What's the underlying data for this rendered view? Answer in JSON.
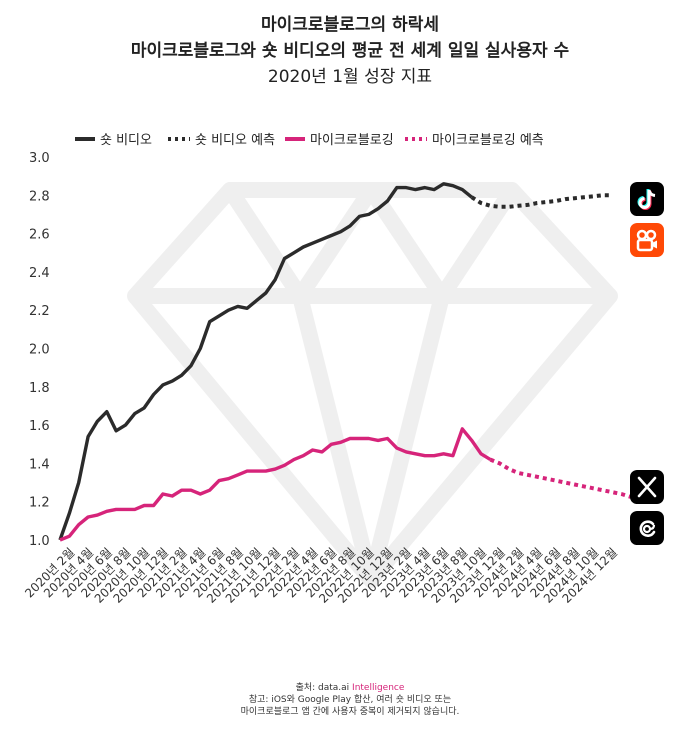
{
  "title": {
    "line1": "마이크로블로그의 하락세",
    "line2": "마이크로블로그와 숏 비디오의 평균 전 세계 일일 실사용자 수",
    "line3": "2020년 1월 성장 지표"
  },
  "footer": {
    "source_prefix": "출처: data.ai ",
    "source_brand": "Intelligence",
    "note1": "참고: iOS와 Google Play 합산, 여러 숏 비디오 또는",
    "note2": "마이크로블로그 앱 간에 사용자 중복이 제거되지 않습니다."
  },
  "icons": {
    "tiktok": "tiktok-icon",
    "kuaishou": "kuaishou-icon",
    "x": "x-app-icon",
    "threads": "threads-icon"
  },
  "colors": {
    "short_video": "#2b2b2b",
    "microblog": "#d6247a",
    "watermark": "#eeeeee"
  },
  "chart_data": {
    "type": "line",
    "title": "",
    "xlabel": "",
    "ylabel": "",
    "ylim": [
      1.0,
      3.0
    ],
    "yticks": [
      "1.0",
      "1.2",
      "1.4",
      "1.6",
      "1.8",
      "2.0",
      "2.2",
      "2.4",
      "2.6",
      "2.8",
      "3.0"
    ],
    "x_tick_labels": [
      "2020년 2월",
      "2020년 4월",
      "2020년 6월",
      "2020년 8월",
      "2020년 10월",
      "2020년 12월",
      "2021년 2월",
      "2021년 4월",
      "2021년 6월",
      "2021년 8월",
      "2021년 10월",
      "2021년 12월",
      "2022년 2월",
      "2022년 4월",
      "2022년 6월",
      "2022년 8월",
      "2022년 10월",
      "2022년 12월",
      "2023년 2월",
      "2023년 4월",
      "2023년 6월",
      "2023년 8월",
      "2023년 10월",
      "2023년 12월",
      "2024년 2월",
      "2024년 4월",
      "2024년 6월",
      "2024년 8월",
      "2024년 10월",
      "2024년 12월"
    ],
    "x_months": [
      "2020-01",
      "2020-02",
      "2020-03",
      "2020-04",
      "2020-05",
      "2020-06",
      "2020-07",
      "2020-08",
      "2020-09",
      "2020-10",
      "2020-11",
      "2020-12",
      "2021-01",
      "2021-02",
      "2021-03",
      "2021-04",
      "2021-05",
      "2021-06",
      "2021-07",
      "2021-08",
      "2021-09",
      "2021-10",
      "2021-11",
      "2021-12",
      "2022-01",
      "2022-02",
      "2022-03",
      "2022-04",
      "2022-05",
      "2022-06",
      "2022-07",
      "2022-08",
      "2022-09",
      "2022-10",
      "2022-11",
      "2022-12",
      "2023-01",
      "2023-02",
      "2023-03",
      "2023-04",
      "2023-05",
      "2023-06",
      "2023-07",
      "2023-08",
      "2023-09",
      "2023-10",
      "2023-11",
      "2023-12",
      "2024-01",
      "2024-02",
      "2024-03",
      "2024-04",
      "2024-05",
      "2024-06",
      "2024-07",
      "2024-08",
      "2024-09",
      "2024-10",
      "2024-11",
      "2024-12"
    ],
    "legend_position": "top",
    "grid": false,
    "series": [
      {
        "name": "숏 비디오",
        "style": "solid",
        "color": "#2b2b2b",
        "start": "2020-01",
        "values": [
          1.0,
          1.14,
          1.3,
          1.54,
          1.62,
          1.67,
          1.57,
          1.6,
          1.66,
          1.69,
          1.76,
          1.81,
          1.83,
          1.86,
          1.91,
          2.0,
          2.14,
          2.17,
          2.2,
          2.22,
          2.21,
          2.25,
          2.29,
          2.36,
          2.47,
          2.5,
          2.53,
          2.55,
          2.57,
          2.59,
          2.61,
          2.64,
          2.69,
          2.7,
          2.73,
          2.77,
          2.84,
          2.84,
          2.83,
          2.84,
          2.83,
          2.86,
          2.85,
          2.83,
          2.79
        ]
      },
      {
        "name": "숏 비디오 예측",
        "style": "dotted",
        "color": "#2b2b2b",
        "start": "2023-09",
        "values": [
          2.79,
          2.76,
          2.745,
          2.74,
          2.74,
          2.745,
          2.75,
          2.76,
          2.765,
          2.77,
          2.78,
          2.785,
          2.79,
          2.795,
          2.8,
          2.8
        ]
      },
      {
        "name": "마이크로블로깅",
        "style": "solid",
        "color": "#d6247a",
        "start": "2020-01",
        "values": [
          1.0,
          1.02,
          1.08,
          1.12,
          1.13,
          1.15,
          1.16,
          1.16,
          1.16,
          1.18,
          1.18,
          1.24,
          1.23,
          1.26,
          1.26,
          1.24,
          1.26,
          1.31,
          1.32,
          1.34,
          1.36,
          1.36,
          1.36,
          1.37,
          1.39,
          1.42,
          1.44,
          1.47,
          1.46,
          1.5,
          1.51,
          1.53,
          1.53,
          1.53,
          1.52,
          1.53,
          1.48,
          1.46,
          1.45,
          1.44,
          1.44,
          1.45,
          1.44,
          1.58,
          1.52,
          1.45,
          1.42
        ]
      },
      {
        "name": "마이크로블로깅 예측",
        "style": "dotted",
        "color": "#d6247a",
        "start": "2023-11",
        "values": [
          1.42,
          1.4,
          1.37,
          1.35,
          1.34,
          1.33,
          1.32,
          1.31,
          1.3,
          1.29,
          1.28,
          1.27,
          1.26,
          1.25,
          1.24,
          1.225
        ]
      }
    ]
  }
}
